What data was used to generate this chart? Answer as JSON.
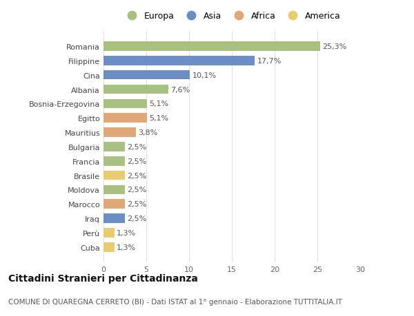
{
  "countries": [
    "Romania",
    "Filippine",
    "Cina",
    "Albania",
    "Bosnia-Erzegovina",
    "Egitto",
    "Mauritius",
    "Bulgaria",
    "Francia",
    "Brasile",
    "Moldova",
    "Marocco",
    "Iraq",
    "Perù",
    "Cuba"
  ],
  "values": [
    25.3,
    17.7,
    10.1,
    7.6,
    5.1,
    5.1,
    3.8,
    2.5,
    2.5,
    2.5,
    2.5,
    2.5,
    2.5,
    1.3,
    1.3
  ],
  "labels": [
    "25,3%",
    "17,7%",
    "10,1%",
    "7,6%",
    "5,1%",
    "5,1%",
    "3,8%",
    "2,5%",
    "2,5%",
    "2,5%",
    "2,5%",
    "2,5%",
    "2,5%",
    "1,3%",
    "1,3%"
  ],
  "continents": [
    "Europa",
    "Asia",
    "Asia",
    "Europa",
    "Europa",
    "Africa",
    "Africa",
    "Europa",
    "Europa",
    "America",
    "Europa",
    "Africa",
    "Asia",
    "America",
    "America"
  ],
  "continent_colors": {
    "Europa": "#a8c080",
    "Asia": "#6b8ec4",
    "Africa": "#e0a878",
    "America": "#e8cc70"
  },
  "legend_order": [
    "Europa",
    "Asia",
    "Africa",
    "America"
  ],
  "title": "Cittadini Stranieri per Cittadinanza",
  "subtitle": "COMUNE DI QUAREGNA CERRETO (BI) - Dati ISTAT al 1° gennaio - Elaborazione TUTTITALIA.IT",
  "xlim": [
    0,
    30
  ],
  "xticks": [
    0,
    5,
    10,
    15,
    20,
    25,
    30
  ],
  "background_color": "#ffffff",
  "plot_background": "#ffffff",
  "grid_color": "#e0e0e0",
  "bar_height": 0.65,
  "title_fontsize": 10,
  "subtitle_fontsize": 7.5,
  "label_fontsize": 8,
  "tick_fontsize": 8,
  "legend_fontsize": 9
}
